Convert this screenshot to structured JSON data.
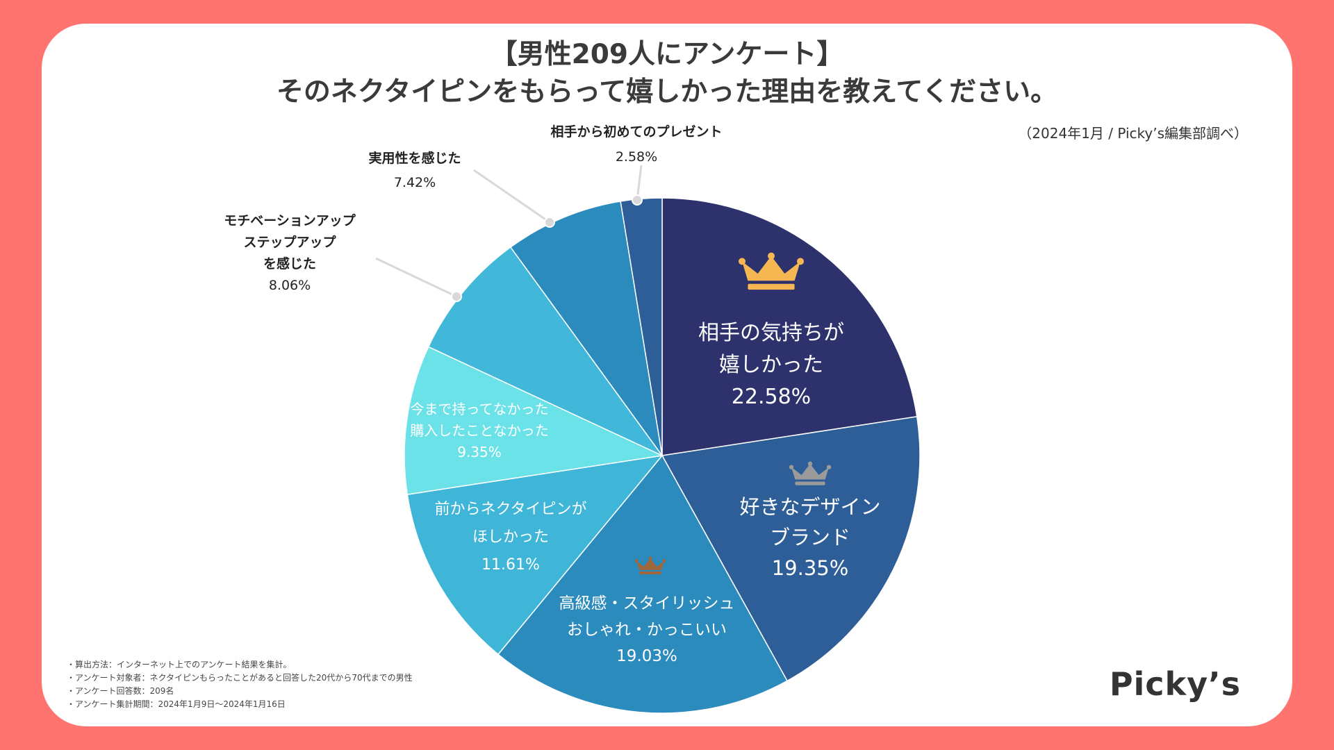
{
  "title": {
    "line1": "【男性209人にアンケート】",
    "line2": "そのネクタイピンをもらって嬉しかった理由を教えてください。"
  },
  "source_note": "（2024年1月 / Picky’s編集部調べ）",
  "brand": "Picky’s",
  "notes": [
    "・算出方法：インターネット上でのアンケート結果を集計。",
    "・アンケート対象者：ネクタイピンもらったことがあると回答した20代から70代までの男性",
    "・アンケート回答数：209名",
    "・アンケート集計期間：2024年1月9日〜2024年1月16日"
  ],
  "colors": {
    "background": "#FF7470",
    "gold": "#F6B752",
    "silver": "#9A9A9A",
    "bronze": "#A0673A"
  },
  "chart_data": {
    "type": "pie",
    "title": "そのネクタイピンをもらって嬉しかった理由を教えてください。",
    "start": "12 o'clock, clockwise",
    "slices": [
      {
        "label_lines": [
          "相手の気持ちが",
          "嬉しかった"
        ],
        "value": 22.58,
        "value_label": "22.58%",
        "color": "#2E326C",
        "rank": "gold"
      },
      {
        "label_lines": [
          "好きなデザイン",
          "ブランド"
        ],
        "value": 19.35,
        "value_label": "19.35%",
        "color": "#2D5E97",
        "rank": "silver"
      },
      {
        "label_lines": [
          "高級感・スタイリッシュ",
          "おしゃれ・かっこいい"
        ],
        "value": 19.03,
        "value_label": "19.03%",
        "color": "#2C8BBD",
        "rank": "bronze"
      },
      {
        "label_lines": [
          "前からネクタイピンが",
          "ほしかった"
        ],
        "value": 11.61,
        "value_label": "11.61%",
        "color": "#3FB5D8"
      },
      {
        "label_lines": [
          "今まで持ってなかった",
          "購入したことなかった"
        ],
        "value": 9.35,
        "value_label": "9.35%",
        "color": "#6BE2E8"
      },
      {
        "label_lines": [
          "モチベーションアップ",
          "ステップアップ",
          "を感じた"
        ],
        "value": 8.06,
        "value_label": "8.06%",
        "color": "#41B8DA",
        "callout": true
      },
      {
        "label_lines": [
          "実用性を感じた"
        ],
        "value": 7.42,
        "value_label": "7.42%",
        "color": "#2C8BBD",
        "callout": true
      },
      {
        "label_lines": [
          "相手から初めてのプレゼント"
        ],
        "value": 2.58,
        "value_label": "2.58%",
        "color": "#2D5E97",
        "callout": true
      }
    ]
  }
}
